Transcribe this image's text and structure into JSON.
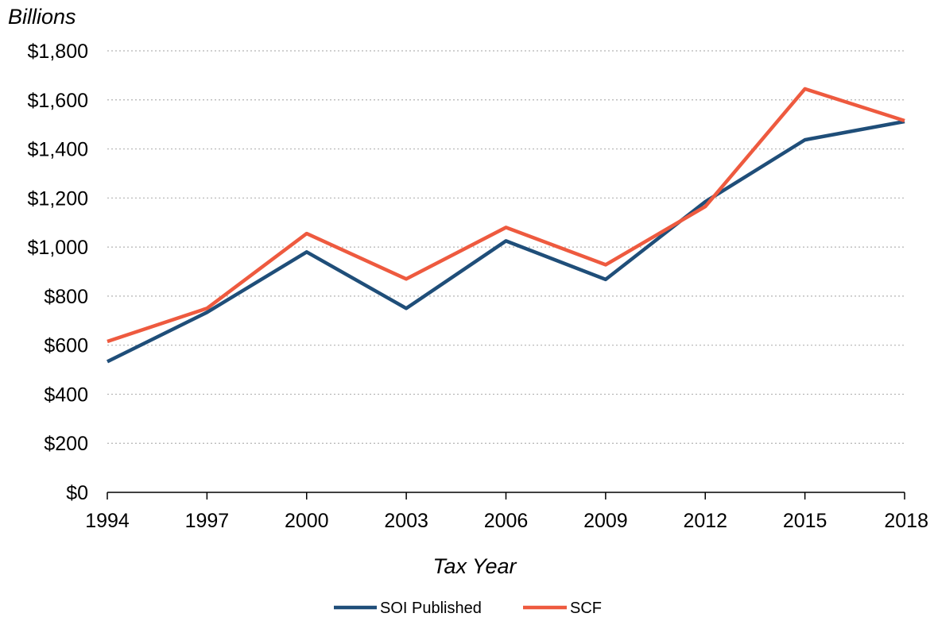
{
  "chart_data": {
    "type": "line",
    "title": "",
    "unit_label": "Billions",
    "xlabel": "Tax Year",
    "ylabel": "",
    "x": [
      1994,
      1997,
      2000,
      2003,
      2006,
      2009,
      2012,
      2015,
      2018
    ],
    "x_tick_labels": [
      "1994",
      "1997",
      "2000",
      "2003",
      "2006",
      "2009",
      "2012",
      "2015",
      "2018"
    ],
    "ylim": [
      0,
      1800
    ],
    "y_ticks": [
      0,
      200,
      400,
      600,
      800,
      1000,
      1200,
      1400,
      1600,
      1800
    ],
    "y_tick_labels": [
      "$0",
      "$200",
      "$400",
      "$600",
      "$800",
      "$1,000",
      "$1,200",
      "$1,400",
      "$1,600",
      "$1,800"
    ],
    "grid": "horizontal-dotted",
    "legend_position": "bottom-center",
    "series": [
      {
        "name": "SOI Published",
        "color": "#1f4e79",
        "values": [
          533,
          734,
          980,
          750,
          1025,
          868,
          1185,
          1437,
          1512
        ]
      },
      {
        "name": "SCF",
        "color": "#ee5a3f",
        "values": [
          615,
          750,
          1055,
          870,
          1080,
          928,
          1165,
          1645,
          1515
        ]
      }
    ]
  }
}
